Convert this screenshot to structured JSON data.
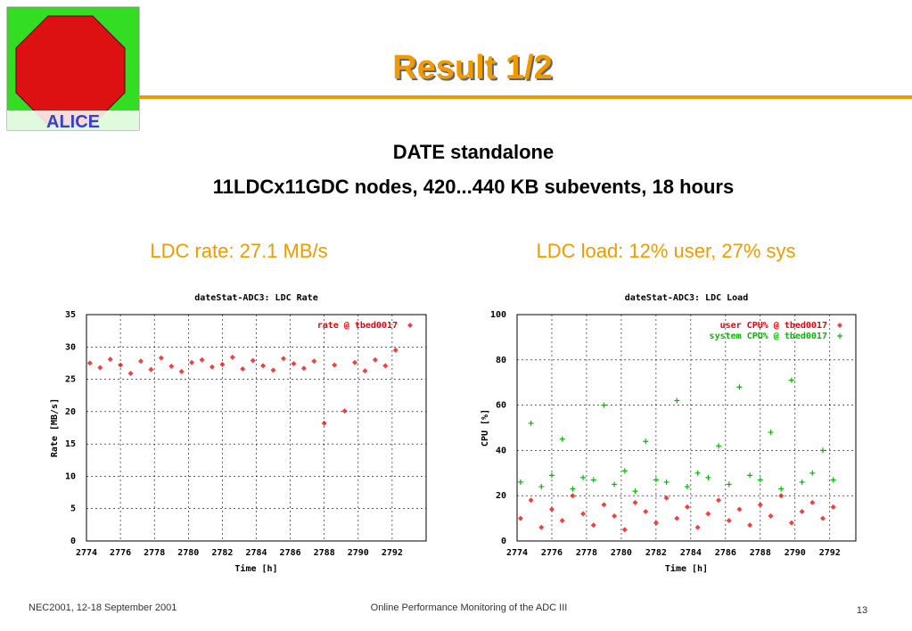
{
  "slide": {
    "title": "Result 1/2",
    "logo_text": "ALICE",
    "subtitle": [
      "DATE standalone",
      "11LDCx11GDC nodes, 420...440 KB subevents, 18 hours"
    ],
    "headings": [
      "LDC rate: 27.1 MB/s",
      "LDC load: 12% user, 27% sys"
    ],
    "footer": {
      "left": "NEC2001, 12-18 September 2001",
      "center": "Online Performance Monitoring of the ADC III",
      "page": "13"
    }
  },
  "chart_data": [
    {
      "type": "scatter",
      "title": "dateStat-ADC3: LDC Rate",
      "x_label": "Time [h]",
      "y_label": "Rate [MB/s]",
      "xlim": [
        2774,
        2794
      ],
      "xticks": [
        2774,
        2776,
        2778,
        2780,
        2782,
        2784,
        2786,
        2788,
        2790,
        2792
      ],
      "ylim": [
        0,
        35
      ],
      "yticks": [
        0,
        5,
        10,
        15,
        20,
        25,
        30,
        35
      ],
      "grid": true,
      "legend": "top-right",
      "series": [
        {
          "name": "rate @ tbed0017",
          "color": "#ee0000",
          "marker": "diamond",
          "x": [
            2774.2,
            2774.8,
            2775.4,
            2776.0,
            2776.6,
            2777.2,
            2777.8,
            2778.4,
            2779.0,
            2779.6,
            2780.2,
            2780.8,
            2781.4,
            2782.0,
            2782.6,
            2783.2,
            2783.8,
            2784.4,
            2785.0,
            2785.6,
            2786.2,
            2786.8,
            2787.4,
            2788.0,
            2788.6,
            2789.2,
            2789.8,
            2790.4,
            2791.0,
            2791.6,
            2792.2
          ],
          "values": [
            27.5,
            26.8,
            28.1,
            27.2,
            25.9,
            27.8,
            26.5,
            28.3,
            27.0,
            26.2,
            27.6,
            28.0,
            26.9,
            27.3,
            28.4,
            26.6,
            27.9,
            27.1,
            26.4,
            28.2,
            27.4,
            26.7,
            27.8,
            18.2,
            27.2,
            20.1,
            27.6,
            26.3,
            28.0,
            27.1,
            29.5
          ]
        }
      ]
    },
    {
      "type": "scatter",
      "title": "dateStat-ADC3: LDC Load",
      "x_label": "Time [h]",
      "y_label": "CPU [%]",
      "xlim": [
        2774,
        2793.5
      ],
      "xticks": [
        2774,
        2776,
        2778,
        2780,
        2782,
        2784,
        2786,
        2788,
        2790,
        2792
      ],
      "ylim": [
        0,
        100
      ],
      "yticks": [
        0,
        20,
        40,
        60,
        80,
        100
      ],
      "grid": true,
      "legend": "top-right",
      "series": [
        {
          "name": "user CPU% @ tbed0017",
          "color": "#ee0000",
          "marker": "diamond",
          "x": [
            2774.2,
            2774.8,
            2775.4,
            2776.0,
            2776.6,
            2777.2,
            2777.8,
            2778.4,
            2779.0,
            2779.6,
            2780.2,
            2780.8,
            2781.4,
            2782.0,
            2782.6,
            2783.2,
            2783.8,
            2784.4,
            2785.0,
            2785.6,
            2786.2,
            2786.8,
            2787.4,
            2788.0,
            2788.6,
            2789.2,
            2789.8,
            2790.4,
            2791.0,
            2791.6,
            2792.2
          ],
          "values": [
            10,
            18,
            6,
            14,
            9,
            20,
            12,
            7,
            16,
            11,
            5,
            17,
            13,
            8,
            19,
            10,
            15,
            6,
            12,
            18,
            9,
            14,
            7,
            16,
            11,
            20,
            8,
            13,
            17,
            10,
            15
          ]
        },
        {
          "name": "system CPU% @ tbed0017",
          "color": "#00bb00",
          "marker": "plus",
          "x": [
            2774.2,
            2774.8,
            2775.4,
            2776.0,
            2776.6,
            2777.2,
            2777.8,
            2778.4,
            2779.0,
            2779.6,
            2780.2,
            2780.8,
            2781.4,
            2782.0,
            2782.6,
            2783.2,
            2783.8,
            2784.4,
            2785.0,
            2785.6,
            2786.2,
            2786.8,
            2787.4,
            2788.0,
            2788.6,
            2789.2,
            2789.8,
            2790.4,
            2791.0,
            2791.6,
            2792.2
          ],
          "values": [
            26,
            52,
            24,
            29,
            45,
            23,
            28,
            27,
            60,
            25,
            31,
            22,
            44,
            27,
            26,
            62,
            24,
            30,
            28,
            42,
            25,
            68,
            29,
            27,
            48,
            23,
            71,
            26,
            30,
            40,
            27
          ]
        }
      ]
    }
  ]
}
